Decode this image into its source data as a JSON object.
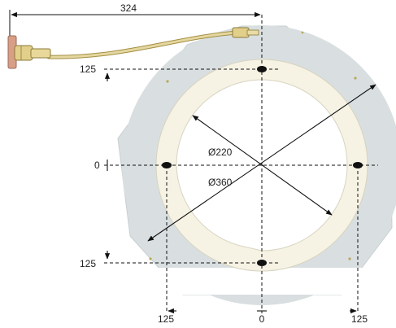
{
  "dimensions": {
    "top_width": "324",
    "inner_diameter": "Ø220",
    "outer_diameter": "Ø360"
  },
  "axis_labels": {
    "left_top": "125",
    "left_center": "0",
    "left_bottom": "125",
    "bottom_left": "125",
    "bottom_center": "0",
    "bottom_right": "125"
  },
  "colors": {
    "plate": "#d9dfe0",
    "ring": "#f6f3e4",
    "cable": "#d9c98a",
    "connector": "#e2cf8a",
    "lines": "#111111"
  }
}
